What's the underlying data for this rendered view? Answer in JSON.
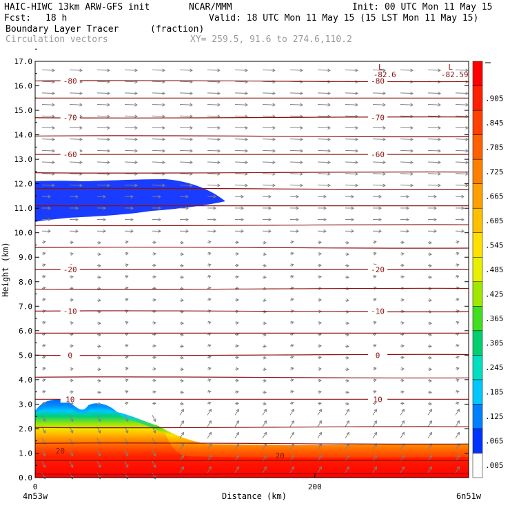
{
  "header": {
    "model": "HAIC-HIWC 13km ARW-GFS init",
    "org": "NCAR/MMM",
    "init": "Init: 00 UTC Mon 11 May 15",
    "fcst_label": "Fcst:",
    "fcst_value": "18 h",
    "valid": "Valid: 18 UTC Mon 11 May 15 (15 LST Mon 11 May 15)",
    "field": "Boundary Layer Tracer",
    "units": "(fraction)",
    "vectors": "Circulation vectors",
    "xy": "XY= 259.5, 91.6 to 274.6,110.2"
  },
  "chart_data": {
    "type": "heatmap",
    "ylabel": "Height (km)",
    "xlabel": "Distance (km)",
    "ylim": [
      0,
      17
    ],
    "xlim": [
      0,
      310
    ],
    "yticks": [
      "0.0",
      "1.0",
      "2.0",
      "3.0",
      "4.0",
      "5.0",
      "6.0",
      "7.0",
      "8.0",
      "9.0",
      "10.0",
      "11.0",
      "12.0",
      "13.0",
      "14.0",
      "15.0",
      "16.0",
      "17.0"
    ],
    "xticks": [
      {
        "value": 0,
        "label": "0"
      },
      {
        "value": 200,
        "label": "200"
      }
    ],
    "x_endpoints": {
      "left": "4n53w",
      "right": "6n51w"
    },
    "colorbar": {
      "labels": [
        ".005",
        ".065",
        ".125",
        ".185",
        ".245",
        ".305",
        ".365",
        ".425",
        ".485",
        ".545",
        ".605",
        ".665",
        ".725",
        ".785",
        ".845",
        ".905",
        ""
      ],
      "colors": [
        "#ffffff",
        "#0033ff",
        "#0080ff",
        "#00c8ff",
        "#00e0c0",
        "#00d070",
        "#40e020",
        "#a0e800",
        "#e8f000",
        "#ffe000",
        "#ffc000",
        "#ffa000",
        "#ff8000",
        "#ff6000",
        "#ff4000",
        "#ff2000",
        "#ff0000"
      ]
    },
    "isotherms": [
      {
        "label": "10",
        "y": 3.2
      },
      {
        "label": "0",
        "y": 5.0
      },
      {
        "label": "-10",
        "y": 6.8
      },
      {
        "label": "-20",
        "y": 8.5
      },
      {
        "label": "-60",
        "y": 13.2
      },
      {
        "label": "-70",
        "y": 14.7
      },
      {
        "label": "-80",
        "y": 16.2
      }
    ],
    "lows": [
      {
        "label": "L",
        "value": "-82.6",
        "x": 250,
        "y": 16.6
      },
      {
        "label": "L",
        "value": "-82.59",
        "x": 300,
        "y": 16.6
      }
    ],
    "annotations": [
      {
        "label": "20",
        "x": 175,
        "y": 0.9
      },
      {
        "label": "20",
        "x": 18,
        "y": 1.1
      }
    ]
  }
}
